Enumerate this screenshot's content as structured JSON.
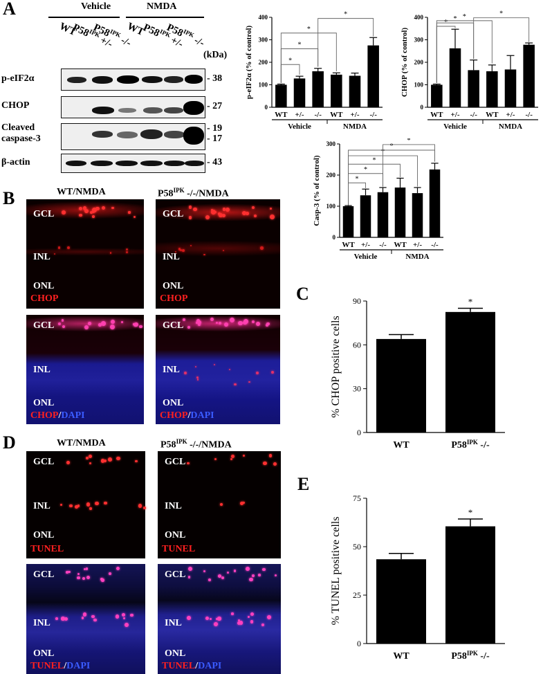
{
  "panels": {
    "A": "A",
    "B": "B",
    "C": "C",
    "D": "D",
    "E": "E"
  },
  "blot": {
    "group_vehicle": "Vehicle",
    "group_nmda": "NMDA",
    "lanes": [
      {
        "base": "WT",
        "sup": "",
        "tail": ""
      },
      {
        "base": "P58",
        "sup": "IPK",
        "tail": " +/-"
      },
      {
        "base": "P58",
        "sup": "IPK",
        "tail": " -/-"
      },
      {
        "base": "WT",
        "sup": "",
        "tail": ""
      },
      {
        "base": "P58",
        "sup": "IPK",
        "tail": " +/-"
      },
      {
        "base": "P58",
        "sup": "IPK",
        "tail": " -/-"
      }
    ],
    "kda_label": "(kDa)",
    "rows": [
      {
        "label": "p-eIF2α",
        "mw": "- 38"
      },
      {
        "label": "CHOP",
        "mw": "- 27"
      },
      {
        "label": "Cleaved",
        "label2": "caspase-3",
        "mw": "- 19",
        "mw2": "- 17"
      },
      {
        "label": "β-actin",
        "mw": "- 43"
      }
    ]
  },
  "micro": {
    "b_title_left": "WT/NMDA",
    "b_title_right_base": "P58",
    "b_title_right_sup": "IPK",
    "b_title_right_tail": " -/-/NMDA",
    "d_title_left": "WT/NMDA",
    "d_title_right_base": "P58",
    "d_title_right_sup": "IPK",
    "d_title_right_tail": " -/-/NMDA",
    "layers": {
      "gcl": "GCL",
      "inl": "INL",
      "onl": "ONL"
    },
    "chop": "CHOP",
    "dapi": "DAPI",
    "tunel": "TUNEL",
    "slash": "/"
  },
  "colors": {
    "red_stain": "#ff2020",
    "blue_stain": "#3a5bff"
  },
  "chart_data": [
    {
      "type": "bar",
      "ylabel": "p-eIF2α (% of control)",
      "categories": [
        "WT",
        "+/-",
        "-/-",
        "WT",
        "+/-",
        "-/-"
      ],
      "groups": [
        "Vehicle",
        "NMDA"
      ],
      "values": [
        100,
        128,
        160,
        145,
        140,
        275
      ],
      "errors": [
        3,
        10,
        13,
        8,
        12,
        35
      ],
      "ylim": [
        0,
        400
      ],
      "yticks": [
        0,
        100,
        200,
        300,
        400
      ],
      "significance": "*"
    },
    {
      "type": "bar",
      "ylabel": "CHOP (% of control)",
      "categories": [
        "WT",
        "+/-",
        "-/-",
        "WT",
        "+/-",
        "-/-"
      ],
      "groups": [
        "Vehicle",
        "NMDA"
      ],
      "values": [
        100,
        262,
        165,
        160,
        168,
        278
      ],
      "errors": [
        3,
        85,
        45,
        28,
        62,
        8
      ],
      "ylim": [
        0,
        400
      ],
      "yticks": [
        0,
        100,
        200,
        300,
        400
      ],
      "significance": "*"
    },
    {
      "type": "bar",
      "ylabel": "Casp-3 (% of control)",
      "categories": [
        "WT",
        "+/-",
        "-/-",
        "WT",
        "+/-",
        "-/-"
      ],
      "groups": [
        "Vehicle",
        "NMDA"
      ],
      "values": [
        100,
        135,
        145,
        160,
        142,
        218
      ],
      "errors": [
        2,
        20,
        15,
        30,
        18,
        20
      ],
      "ylim": [
        0,
        300
      ],
      "yticks": [
        0,
        100,
        200,
        300
      ],
      "significance": "*"
    },
    {
      "type": "bar",
      "ylabel": "% CHOP positive cells",
      "categories": [
        "WT",
        "P58IPK -/-"
      ],
      "values": [
        64,
        82.5
      ],
      "errors": [
        3,
        2.5
      ],
      "ylim": [
        0,
        90
      ],
      "yticks": [
        0,
        30,
        60,
        90
      ],
      "significance": "*"
    },
    {
      "type": "bar",
      "ylabel": "% TUNEL positive cells",
      "categories": [
        "WT",
        "P58IPK -/-"
      ],
      "values": [
        43.5,
        60.5
      ],
      "errors": [
        3,
        3.8
      ],
      "ylim": [
        0,
        75
      ],
      "yticks": [
        0,
        25,
        50,
        75
      ],
      "significance": "*"
    }
  ]
}
